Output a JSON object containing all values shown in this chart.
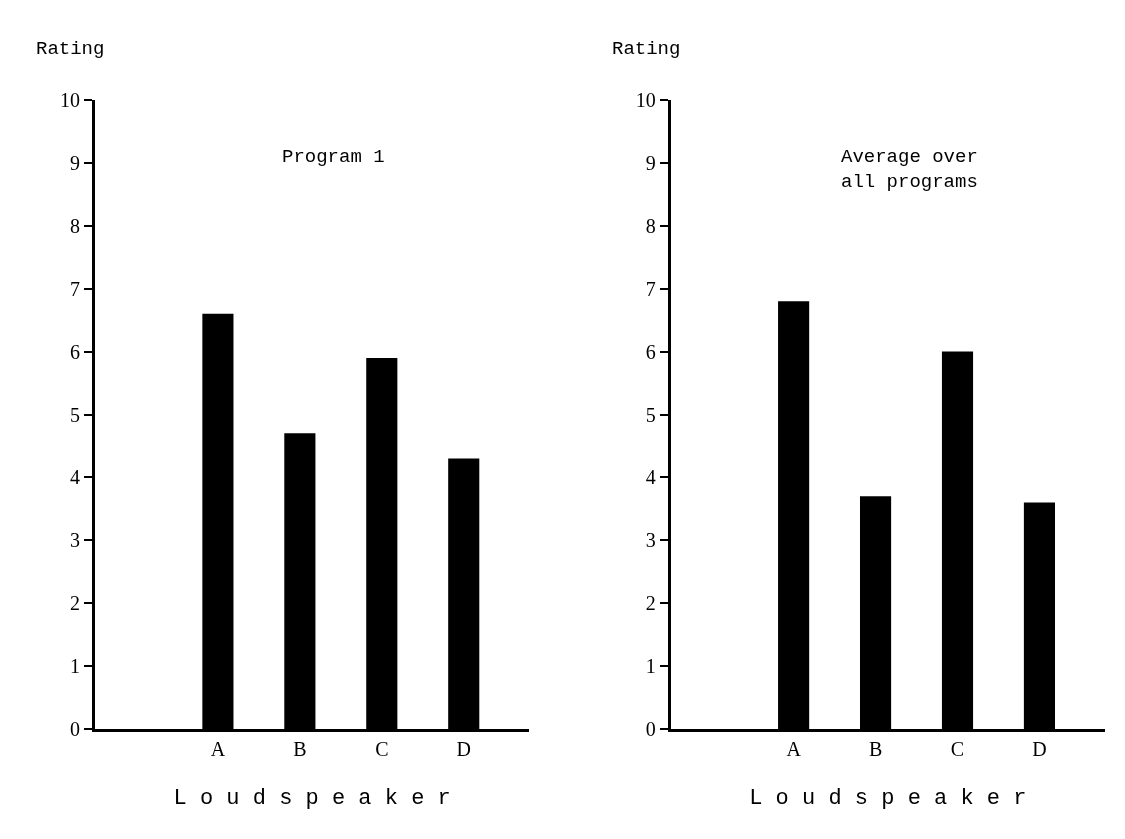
{
  "chart_data": [
    {
      "type": "bar",
      "title": "Program 1",
      "ylabel": "Rating",
      "xlabel": "L o u d s p e a k e r",
      "categories": [
        null,
        "A",
        "B",
        "C",
        "D"
      ],
      "values": [
        null,
        6.6,
        4.7,
        5.9,
        4.3
      ],
      "color": "#000000",
      "ylim": [
        0,
        10
      ],
      "yticks": [
        0,
        1,
        2,
        3,
        4,
        5,
        6,
        7,
        8,
        9,
        10
      ]
    },
    {
      "type": "bar",
      "title": "Average over\nall programs",
      "ylabel": "Rating",
      "xlabel": "L o u d s p e a k e r",
      "categories": [
        null,
        "A",
        "B",
        "C",
        "D"
      ],
      "values": [
        null,
        6.8,
        3.7,
        6.0,
        3.6
      ],
      "color": "#000000",
      "ylim": [
        0,
        10
      ],
      "yticks": [
        0,
        1,
        2,
        3,
        4,
        5,
        6,
        7,
        8,
        9,
        10
      ]
    }
  ]
}
